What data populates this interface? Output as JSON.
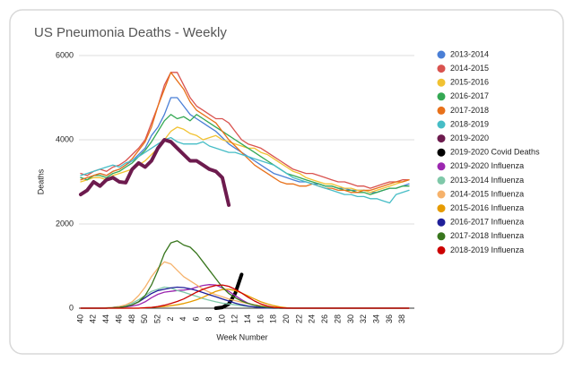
{
  "chart_data": {
    "type": "line",
    "title": "US Pneumonia Deaths - Weekly",
    "x_label": "Week Number",
    "y_label": "Deaths",
    "categories": [
      40,
      null,
      42,
      null,
      44,
      null,
      46,
      null,
      48,
      null,
      50,
      null,
      52,
      null,
      2,
      null,
      4,
      null,
      6,
      null,
      8,
      null,
      10,
      null,
      12,
      null,
      14,
      null,
      16,
      null,
      18,
      null,
      20,
      null,
      22,
      null,
      24,
      null,
      26,
      null,
      28,
      null,
      30,
      null,
      32,
      null,
      34,
      null,
      36,
      null,
      38,
      null
    ],
    "ylim": [
      0,
      6000
    ],
    "yticks": [
      0,
      2000,
      4000,
      6000
    ],
    "grid": true,
    "legend": "right",
    "series": [
      {
        "name": "2013-2014",
        "color": "#4a7fd6",
        "values": [
          3100,
          3050,
          3150,
          3200,
          3150,
          3250,
          3300,
          3400,
          3500,
          3650,
          3800,
          4100,
          4300,
          4600,
          5000,
          5000,
          4800,
          4600,
          4500,
          4400,
          4300,
          4200,
          4050,
          3900,
          3800,
          3700,
          3600,
          3500,
          3400,
          3300,
          3200,
          3150,
          3100,
          3050,
          3000,
          3000,
          2950,
          2950,
          2900,
          2900,
          2850,
          2850,
          2800,
          2800,
          2800,
          2750,
          2750,
          2800,
          2850,
          2850,
          2900,
          2950
        ]
      },
      {
        "name": "2014-2015",
        "color": "#d9534f",
        "values": [
          3200,
          3150,
          3250,
          3300,
          3250,
          3350,
          3400,
          3500,
          3650,
          3800,
          4000,
          4400,
          4800,
          5300,
          5600,
          5600,
          5300,
          5000,
          4800,
          4700,
          4600,
          4500,
          4500,
          4400,
          4200,
          4000,
          3900,
          3850,
          3800,
          3700,
          3600,
          3500,
          3400,
          3300,
          3250,
          3200,
          3200,
          3150,
          3100,
          3050,
          3000,
          3000,
          2950,
          2900,
          2900,
          2850,
          2900,
          2950,
          3000,
          3000,
          3050,
          3050
        ]
      },
      {
        "name": "2015-2016",
        "color": "#f1c232",
        "values": [
          3000,
          3050,
          3100,
          3100,
          3050,
          3150,
          3200,
          3250,
          3300,
          3400,
          3500,
          3650,
          3800,
          4000,
          4200,
          4300,
          4250,
          4150,
          4100,
          4000,
          4050,
          4100,
          4000,
          3950,
          3900,
          3850,
          3800,
          3800,
          3700,
          3650,
          3550,
          3450,
          3350,
          3250,
          3200,
          3100,
          3050,
          3000,
          2950,
          2950,
          2900,
          2850,
          2850,
          2800,
          2800,
          2750,
          2800,
          2850,
          2900,
          2950,
          3000,
          3050
        ]
      },
      {
        "name": "2016-2017",
        "color": "#34a853",
        "values": [
          3100,
          3050,
          3150,
          3150,
          3100,
          3200,
          3250,
          3350,
          3450,
          3600,
          3750,
          3950,
          4200,
          4450,
          4600,
          4500,
          4550,
          4450,
          4600,
          4500,
          4400,
          4300,
          4200,
          4100,
          4000,
          3900,
          3800,
          3700,
          3600,
          3500,
          3400,
          3300,
          3200,
          3150,
          3100,
          3050,
          3000,
          2950,
          2900,
          2900,
          2850,
          2800,
          2800,
          2750,
          2750,
          2700,
          2750,
          2800,
          2850,
          2850,
          2900,
          2900
        ]
      },
      {
        "name": "2017-2018",
        "color": "#e8711a",
        "values": [
          3050,
          3100,
          3150,
          3200,
          3150,
          3250,
          3300,
          3400,
          3550,
          3750,
          3950,
          4300,
          4800,
          5200,
          5600,
          5400,
          5200,
          4900,
          4700,
          4600,
          4500,
          4400,
          4200,
          4000,
          3850,
          3700,
          3550,
          3400,
          3300,
          3200,
          3100,
          3000,
          2950,
          2950,
          2900,
          2900,
          2950,
          2900,
          2850,
          2850,
          2800,
          2800,
          2750,
          2750,
          2800,
          2800,
          2850,
          2900,
          2950,
          3000,
          3000,
          3050
        ]
      },
      {
        "name": "2018-2019",
        "color": "#46bdc6",
        "values": [
          3150,
          3200,
          3250,
          3300,
          3350,
          3400,
          3350,
          3450,
          3500,
          3600,
          3700,
          3800,
          3900,
          4000,
          4050,
          3950,
          3900,
          3900,
          3900,
          3950,
          3850,
          3800,
          3750,
          3700,
          3700,
          3650,
          3600,
          3550,
          3500,
          3450,
          3400,
          3300,
          3200,
          3100,
          3050,
          3000,
          2950,
          2900,
          2850,
          2800,
          2750,
          2700,
          2700,
          2650,
          2650,
          2600,
          2600,
          2550,
          2500,
          2700,
          2750,
          2800
        ]
      },
      {
        "name": "2019-2020",
        "color": "#6d1b4e",
        "width": 4,
        "values": [
          2700,
          2800,
          3000,
          2900,
          3050,
          3100,
          3000,
          2980,
          3300,
          3450,
          3350,
          3500,
          3800,
          4000,
          3950,
          3800,
          3650,
          3500,
          3500,
          3400,
          3300,
          3250,
          3100,
          2450,
          null,
          null,
          null,
          null,
          null,
          null,
          null,
          null,
          null,
          null,
          null,
          null,
          null,
          null,
          null,
          null,
          null,
          null,
          null,
          null,
          null,
          null,
          null,
          null,
          null,
          null,
          null,
          null
        ]
      },
      {
        "name": "2019-2020 Covid Deaths",
        "color": "#000000",
        "width": 4,
        "values": [
          null,
          null,
          null,
          null,
          null,
          null,
          null,
          null,
          null,
          null,
          null,
          null,
          null,
          null,
          null,
          null,
          null,
          null,
          null,
          null,
          null,
          0,
          20,
          100,
          350,
          800,
          null,
          null,
          null,
          null,
          null,
          null,
          null,
          null,
          null,
          null,
          null,
          null,
          null,
          null,
          null,
          null,
          null,
          null,
          null,
          null,
          null,
          null,
          null,
          null,
          null,
          null
        ]
      },
      {
        "name": "2019-2020 Influenza",
        "color": "#9c27b0",
        "values": [
          0,
          0,
          0,
          0,
          0,
          10,
          20,
          30,
          50,
          80,
          150,
          250,
          330,
          380,
          400,
          420,
          430,
          450,
          500,
          540,
          560,
          550,
          480,
          400,
          300,
          200,
          120,
          70,
          40,
          20,
          10,
          0,
          0,
          0,
          0,
          0,
          0,
          0,
          0,
          0,
          0,
          0,
          0,
          0,
          0,
          0,
          0,
          0,
          0,
          0,
          0,
          0
        ]
      },
      {
        "name": "2013-2014 Influenza",
        "color": "#7fc8a9",
        "values": [
          0,
          0,
          0,
          0,
          10,
          20,
          40,
          70,
          120,
          200,
          300,
          400,
          450,
          500,
          480,
          420,
          380,
          330,
          280,
          230,
          190,
          150,
          120,
          100,
          80,
          60,
          40,
          30,
          20,
          10,
          0,
          0,
          0,
          0,
          0,
          0,
          0,
          0,
          0,
          0,
          0,
          0,
          0,
          0,
          0,
          0,
          0,
          0,
          0,
          0,
          0,
          0
        ]
      },
      {
        "name": "2014-2015 Influenza",
        "color": "#f6b26b",
        "values": [
          0,
          0,
          0,
          0,
          10,
          20,
          40,
          80,
          150,
          300,
          500,
          750,
          950,
          1100,
          1050,
          900,
          750,
          650,
          550,
          450,
          380,
          320,
          270,
          220,
          180,
          140,
          110,
          80,
          60,
          40,
          30,
          20,
          10,
          0,
          0,
          0,
          0,
          0,
          0,
          0,
          0,
          0,
          0,
          0,
          0,
          0,
          0,
          0,
          0,
          0,
          0,
          0
        ]
      },
      {
        "name": "2015-2016 Influenza",
        "color": "#e69b00",
        "values": [
          0,
          0,
          0,
          0,
          0,
          0,
          0,
          0,
          0,
          0,
          10,
          20,
          30,
          40,
          60,
          80,
          110,
          150,
          200,
          260,
          330,
          400,
          440,
          450,
          420,
          360,
          290,
          220,
          150,
          100,
          60,
          30,
          10,
          0,
          0,
          0,
          0,
          0,
          0,
          0,
          0,
          0,
          0,
          0,
          0,
          0,
          0,
          0,
          0,
          0,
          0,
          0
        ]
      },
      {
        "name": "2016-2017 Influenza",
        "color": "#20209a",
        "values": [
          0,
          0,
          0,
          0,
          0,
          10,
          20,
          40,
          80,
          150,
          250,
          350,
          420,
          450,
          480,
          500,
          490,
          460,
          420,
          370,
          320,
          270,
          220,
          170,
          120,
          80,
          50,
          30,
          15,
          5,
          0,
          0,
          0,
          0,
          0,
          0,
          0,
          0,
          0,
          0,
          0,
          0,
          0,
          0,
          0,
          0,
          0,
          0,
          0,
          0,
          0,
          0
        ]
      },
      {
        "name": "2017-2018 Influenza",
        "color": "#38761d",
        "values": [
          0,
          0,
          0,
          0,
          0,
          10,
          20,
          40,
          80,
          150,
          300,
          550,
          900,
          1300,
          1550,
          1600,
          1500,
          1450,
          1300,
          1100,
          900,
          700,
          500,
          350,
          250,
          170,
          110,
          70,
          40,
          20,
          10,
          0,
          0,
          0,
          0,
          0,
          0,
          0,
          0,
          0,
          0,
          0,
          0,
          0,
          0,
          0,
          0,
          0,
          0,
          0,
          0,
          0
        ]
      },
      {
        "name": "2018-2019 Influenza",
        "color": "#cc0000",
        "values": [
          0,
          0,
          0,
          0,
          0,
          0,
          0,
          0,
          0,
          0,
          10,
          20,
          40,
          70,
          110,
          160,
          220,
          300,
          380,
          450,
          500,
          540,
          550,
          520,
          450,
          360,
          260,
          170,
          100,
          50,
          20,
          10,
          0,
          0,
          0,
          0,
          0,
          0,
          0,
          0,
          0,
          0,
          0,
          0,
          0,
          0,
          0,
          0,
          0,
          0,
          0,
          0
        ]
      }
    ]
  }
}
